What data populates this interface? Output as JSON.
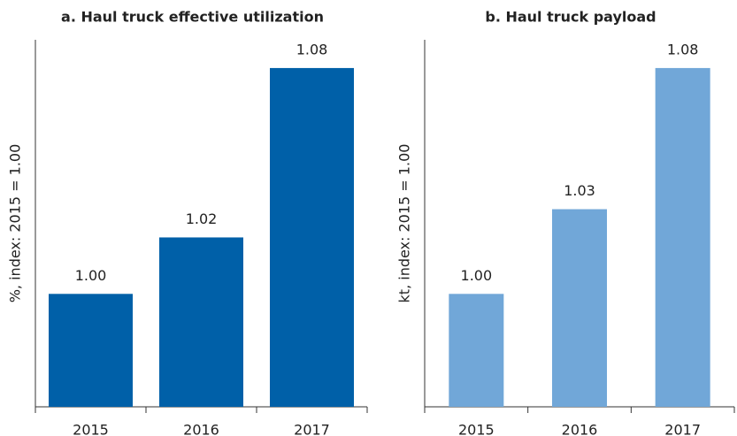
{
  "chart_data": [
    {
      "type": "bar",
      "title": "a. Haul truck effective utilization",
      "y_label": "%, index: 2015 = 1.00",
      "categories": [
        "2015",
        "2016",
        "2017"
      ],
      "values": [
        1.0,
        1.02,
        1.08
      ],
      "value_labels": [
        "1.00",
        "1.02",
        "1.08"
      ],
      "color": "#0060a8",
      "ylim": [
        0.96,
        1.09
      ]
    },
    {
      "type": "bar",
      "title": "b. Haul truck payload",
      "y_label": "kt, index: 2015 = 1.00",
      "categories": [
        "2015",
        "2016",
        "2017"
      ],
      "values": [
        1.0,
        1.03,
        1.08
      ],
      "value_labels": [
        "1.00",
        "1.03",
        "1.08"
      ],
      "color": "#71a7d8",
      "ylim": [
        0.96,
        1.09
      ]
    }
  ]
}
